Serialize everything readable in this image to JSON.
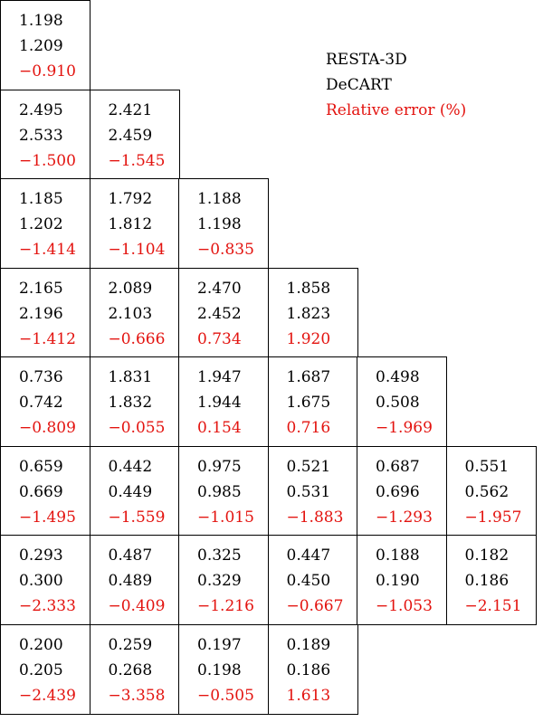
{
  "legend": {
    "line1": "RESTA-3D",
    "line2": "DeCART",
    "line3": "Relative error (%)"
  },
  "colors": {
    "text": "#000000",
    "error": "#e3130f",
    "border": "#000000"
  },
  "rows": [
    [
      {
        "resta": "1.198",
        "decart": "1.209",
        "error": "−0.910"
      }
    ],
    [
      {
        "resta": "2.495",
        "decart": "2.533",
        "error": "−1.500"
      },
      {
        "resta": "2.421",
        "decart": "2.459",
        "error": "−1.545"
      }
    ],
    [
      {
        "resta": "1.185",
        "decart": "1.202",
        "error": "−1.414"
      },
      {
        "resta": "1.792",
        "decart": "1.812",
        "error": "−1.104"
      },
      {
        "resta": "1.188",
        "decart": "1.198",
        "error": "−0.835"
      }
    ],
    [
      {
        "resta": "2.165",
        "decart": "2.196",
        "error": "−1.412"
      },
      {
        "resta": "2.089",
        "decart": "2.103",
        "error": "−0.666"
      },
      {
        "resta": "2.470",
        "decart": "2.452",
        "error": "0.734"
      },
      {
        "resta": "1.858",
        "decart": "1.823",
        "error": "1.920"
      }
    ],
    [
      {
        "resta": "0.736",
        "decart": "0.742",
        "error": "−0.809"
      },
      {
        "resta": "1.831",
        "decart": "1.832",
        "error": "−0.055"
      },
      {
        "resta": "1.947",
        "decart": "1.944",
        "error": "0.154"
      },
      {
        "resta": "1.687",
        "decart": "1.675",
        "error": "0.716"
      },
      {
        "resta": "0.498",
        "decart": "0.508",
        "error": "−1.969"
      }
    ],
    [
      {
        "resta": "0.659",
        "decart": "0.669",
        "error": "−1.495"
      },
      {
        "resta": "0.442",
        "decart": "0.449",
        "error": "−1.559"
      },
      {
        "resta": "0.975",
        "decart": "0.985",
        "error": "−1.015"
      },
      {
        "resta": "0.521",
        "decart": "0.531",
        "error": "−1.883"
      },
      {
        "resta": "0.687",
        "decart": "0.696",
        "error": "−1.293"
      },
      {
        "resta": "0.551",
        "decart": "0.562",
        "error": "−1.957"
      }
    ],
    [
      {
        "resta": "0.293",
        "decart": "0.300",
        "error": "−2.333"
      },
      {
        "resta": "0.487",
        "decart": "0.489",
        "error": "−0.409"
      },
      {
        "resta": "0.325",
        "decart": "0.329",
        "error": "−1.216"
      },
      {
        "resta": "0.447",
        "decart": "0.450",
        "error": "−0.667"
      },
      {
        "resta": "0.188",
        "decart": "0.190",
        "error": "−1.053"
      },
      {
        "resta": "0.182",
        "decart": "0.186",
        "error": "−2.151"
      }
    ],
    [
      {
        "resta": "0.200",
        "decart": "0.205",
        "error": "−2.439"
      },
      {
        "resta": "0.259",
        "decart": "0.268",
        "error": "−3.358"
      },
      {
        "resta": "0.197",
        "decart": "0.198",
        "error": "−0.505"
      },
      {
        "resta": "0.189",
        "decart": "0.186",
        "error": "1.613"
      }
    ]
  ]
}
